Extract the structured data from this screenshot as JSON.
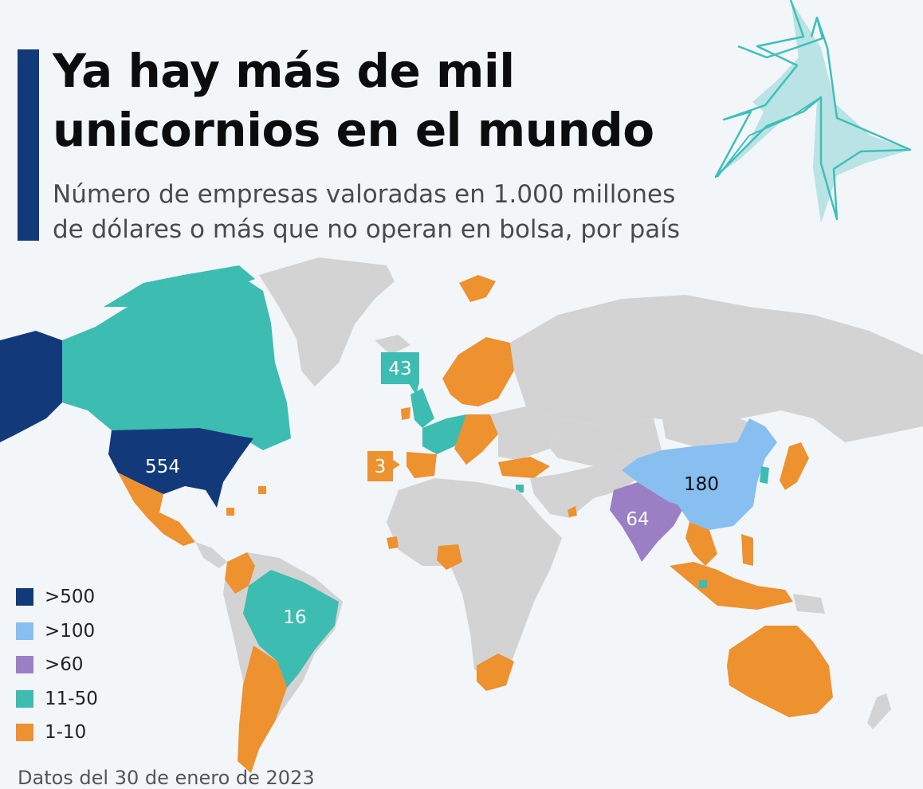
{
  "header": {
    "title_line1": "Ya hay más de mil",
    "title_line2": "unicornios en el mundo",
    "subtitle_line1": "Número de empresas valoradas en 1.000 millones",
    "subtitle_line2": "de dólares o más que no operan en bolsa, por país"
  },
  "colors": {
    "gt500": "#123a7a",
    "gt100": "#86bff0",
    "gt60": "#9b7fc4",
    "r11_50": "#3dbcb2",
    "r1_10": "#ee912f",
    "none": "#d3d3d3",
    "accent": "#123a7a"
  },
  "legend": [
    {
      "label": ">500",
      "color": "#123a7a"
    },
    {
      "label": ">100",
      "color": "#86bff0"
    },
    {
      "label": ">60",
      "color": "#9b7fc4"
    },
    {
      "label": "11-50",
      "color": "#3dbcb2"
    },
    {
      "label": "1-10",
      "color": "#ee912f"
    }
  ],
  "map_labels": {
    "usa": "554",
    "china": "180",
    "india": "64",
    "uk": "43",
    "brazil": "16",
    "ireland": "3"
  },
  "source": "Datos del 30 de enero de 2023"
}
